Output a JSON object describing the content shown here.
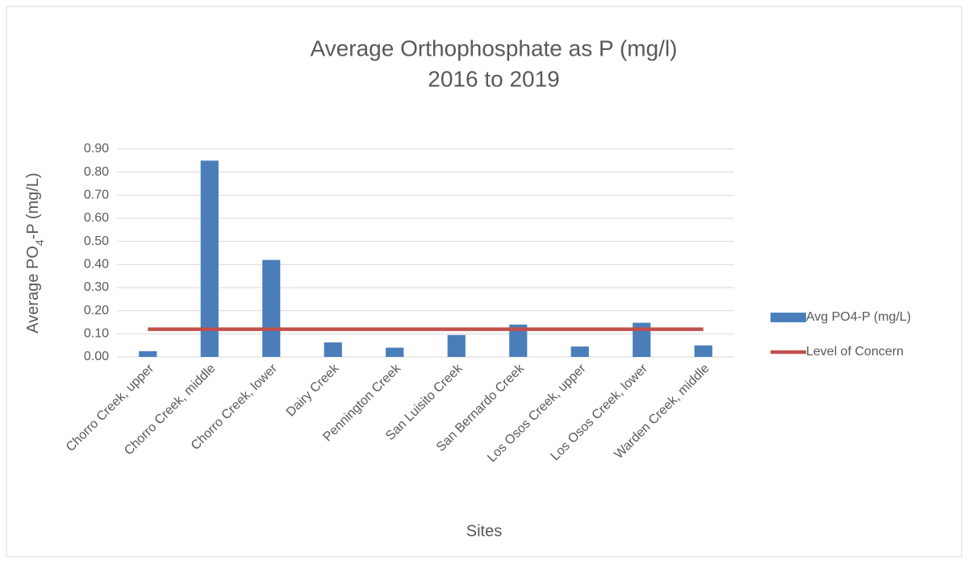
{
  "chart_data": {
    "type": "bar",
    "title": "Average Orthophosphate as P (mg/l)",
    "subtitle": "2016 to 2019",
    "x_label": "Sites",
    "y_label": "Average PO4-P (mg/L)",
    "categories": [
      "Chorro Creek, upper",
      "Chorro Creek, middle",
      "Chorro Creek, lower",
      "Dairy Creek",
      "Pennington Creek",
      "San Luisito Creek",
      "San Bernardo Creek",
      "Los Osos Creek, upper",
      "Los Osos Creek, lower",
      "Warden Creek, middle"
    ],
    "series": [
      {
        "name": "Avg PO4-P (mg/L)",
        "type": "bar",
        "color": "#4a7ebb",
        "values": [
          0.025,
          0.85,
          0.42,
          0.063,
          0.04,
          0.095,
          0.14,
          0.045,
          0.148,
          0.05
        ]
      },
      {
        "name": "Level of Concern",
        "type": "line",
        "color": "#c0504d",
        "values": [
          0.12,
          0.12,
          0.12,
          0.12,
          0.12,
          0.12,
          0.12,
          0.12,
          0.12,
          0.12
        ]
      }
    ],
    "ylim": [
      0,
      0.9
    ],
    "yticks": [
      {
        "value": 0,
        "label": "0.00"
      },
      {
        "value": 0.1,
        "label": "0.10"
      },
      {
        "value": 0.2,
        "label": "0.20"
      },
      {
        "value": 0.3,
        "label": "0.30"
      },
      {
        "value": 0.4,
        "label": "0.40"
      },
      {
        "value": 0.5,
        "label": "0.50"
      },
      {
        "value": 0.6,
        "label": "0.60"
      },
      {
        "value": 0.7,
        "label": "0.70"
      },
      {
        "value": 0.8,
        "label": "0.80"
      },
      {
        "value": 0.9,
        "label": "0.90"
      }
    ],
    "grid": true,
    "legend": "right"
  }
}
